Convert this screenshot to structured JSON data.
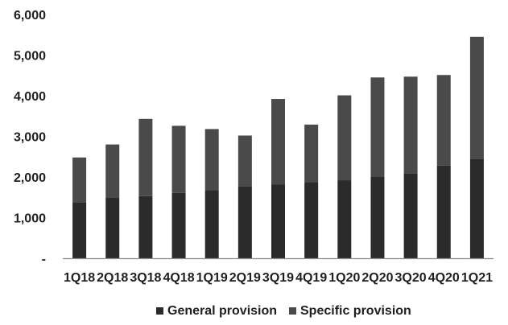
{
  "chart_data": {
    "type": "bar",
    "stacked": true,
    "categories": [
      "1Q18",
      "2Q18",
      "3Q18",
      "4Q18",
      "1Q19",
      "2Q19",
      "3Q19",
      "4Q19",
      "1Q20",
      "2Q20",
      "3Q20",
      "4Q20",
      "1Q21"
    ],
    "series": [
      {
        "name": "General provision",
        "values": [
          1380,
          1500,
          1530,
          1610,
          1680,
          1770,
          1820,
          1870,
          1920,
          2000,
          2080,
          2280,
          2450
        ],
        "color": "#2b2b2b"
      },
      {
        "name": "Specific provision",
        "values": [
          1100,
          1300,
          1900,
          1650,
          1500,
          1250,
          2100,
          1420,
          2090,
          2450,
          2390,
          2230,
          3000
        ],
        "color": "#4a4a4a"
      }
    ],
    "yticks": [
      "-",
      "1,000",
      "2,000",
      "3,000",
      "4,000",
      "5,000",
      "6,000"
    ],
    "ylim": [
      0,
      6000
    ],
    "grid": false,
    "legend": "bottom"
  }
}
